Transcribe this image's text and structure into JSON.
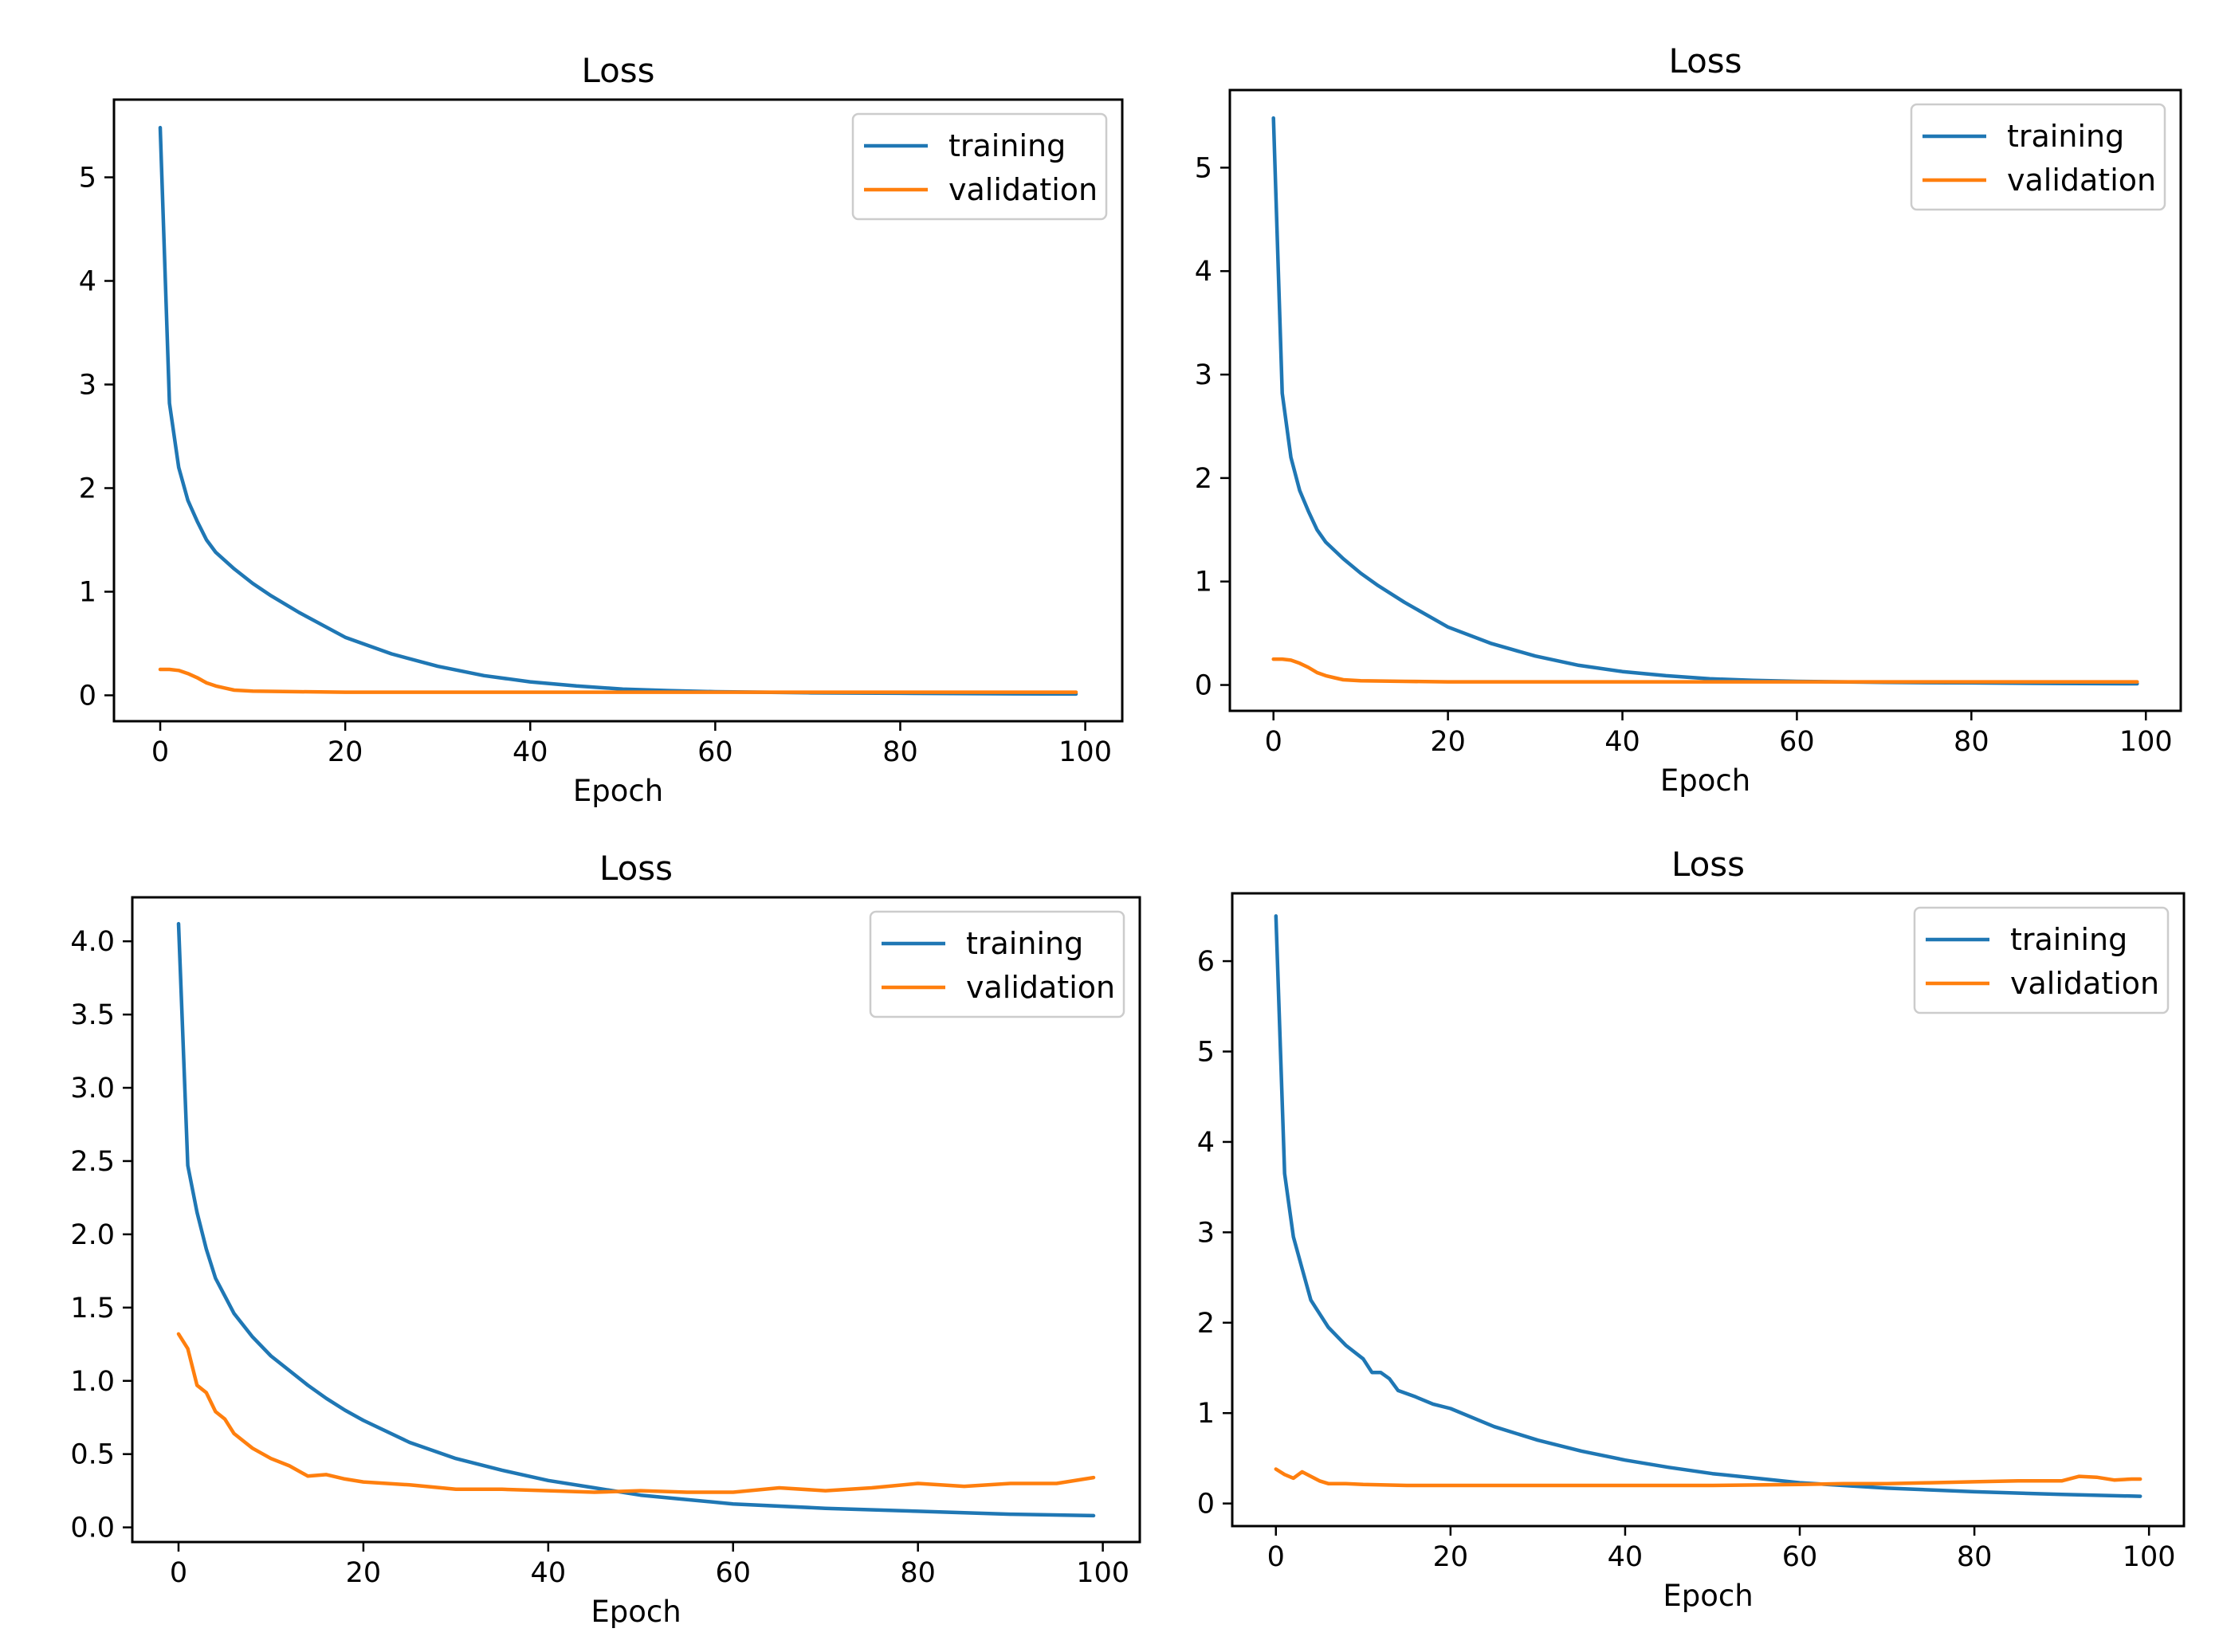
{
  "chart_data": [
    {
      "type": "line",
      "title": "Loss",
      "xlabel": "Epoch",
      "ylabel": "",
      "xlim": [
        -5,
        104
      ],
      "ylim": [
        -0.25,
        5.75
      ],
      "xticks": [
        0,
        20,
        40,
        60,
        80,
        100
      ],
      "yticks": [
        0,
        1,
        2,
        3,
        4,
        5
      ],
      "ytick_labels": [
        "0",
        "1",
        "2",
        "3",
        "4",
        "5"
      ],
      "legend_position": "top-right",
      "series": [
        {
          "name": "training",
          "color": "#1f77b4",
          "x": [
            0,
            1,
            2,
            3,
            4,
            5,
            6,
            8,
            10,
            12,
            15,
            20,
            25,
            30,
            35,
            40,
            45,
            50,
            55,
            60,
            70,
            80,
            90,
            99
          ],
          "values": [
            5.48,
            2.82,
            2.2,
            1.88,
            1.68,
            1.5,
            1.38,
            1.22,
            1.08,
            0.96,
            0.8,
            0.56,
            0.4,
            0.28,
            0.19,
            0.13,
            0.09,
            0.06,
            0.045,
            0.035,
            0.025,
            0.02,
            0.015,
            0.012
          ]
        },
        {
          "name": "validation",
          "color": "#ff7f0e",
          "x": [
            0,
            1,
            2,
            3,
            4,
            5,
            6,
            7,
            8,
            10,
            15,
            20,
            30,
            40,
            50,
            60,
            70,
            80,
            90,
            99
          ],
          "values": [
            0.25,
            0.25,
            0.24,
            0.21,
            0.17,
            0.12,
            0.09,
            0.07,
            0.05,
            0.04,
            0.035,
            0.03,
            0.03,
            0.03,
            0.03,
            0.03,
            0.03,
            0.03,
            0.03,
            0.03
          ]
        }
      ]
    },
    {
      "type": "line",
      "title": "Loss",
      "xlabel": "Epoch",
      "ylabel": "",
      "xlim": [
        -5,
        104
      ],
      "ylim": [
        -0.25,
        5.75
      ],
      "xticks": [
        0,
        20,
        40,
        60,
        80,
        100
      ],
      "yticks": [
        0,
        1,
        2,
        3,
        4,
        5
      ],
      "ytick_labels": [
        "0",
        "1",
        "2",
        "3",
        "4",
        "5"
      ],
      "legend_position": "top-right",
      "series": [
        {
          "name": "training",
          "color": "#1f77b4",
          "x": [
            0,
            1,
            2,
            3,
            4,
            5,
            6,
            8,
            10,
            12,
            15,
            20,
            25,
            30,
            35,
            40,
            45,
            50,
            55,
            60,
            70,
            80,
            90,
            99
          ],
          "values": [
            5.48,
            2.82,
            2.2,
            1.88,
            1.68,
            1.5,
            1.38,
            1.22,
            1.08,
            0.96,
            0.8,
            0.56,
            0.4,
            0.28,
            0.19,
            0.13,
            0.09,
            0.06,
            0.045,
            0.035,
            0.025,
            0.02,
            0.015,
            0.012
          ]
        },
        {
          "name": "validation",
          "color": "#ff7f0e",
          "x": [
            0,
            1,
            2,
            3,
            4,
            5,
            6,
            7,
            8,
            10,
            15,
            20,
            30,
            40,
            50,
            60,
            70,
            80,
            90,
            99
          ],
          "values": [
            0.25,
            0.25,
            0.24,
            0.21,
            0.17,
            0.12,
            0.09,
            0.07,
            0.05,
            0.04,
            0.035,
            0.03,
            0.03,
            0.03,
            0.03,
            0.03,
            0.03,
            0.03,
            0.03,
            0.03
          ]
        }
      ]
    },
    {
      "type": "line",
      "title": "Loss",
      "xlabel": "Epoch",
      "ylabel": "",
      "xlim": [
        -5,
        104
      ],
      "ylim": [
        -0.1,
        4.3
      ],
      "xticks": [
        0,
        20,
        40,
        60,
        80,
        100
      ],
      "yticks": [
        0,
        0.5,
        1,
        1.5,
        2,
        2.5,
        3,
        3.5,
        4
      ],
      "ytick_labels": [
        "0.0",
        "0.5",
        "1.0",
        "1.5",
        "2.0",
        "2.5",
        "3.0",
        "3.5",
        "4.0"
      ],
      "legend_position": "top-right",
      "series": [
        {
          "name": "training",
          "color": "#1f77b4",
          "x": [
            0,
            1,
            2,
            3,
            4,
            5,
            6,
            8,
            10,
            12,
            14,
            16,
            18,
            20,
            25,
            30,
            35,
            40,
            45,
            50,
            55,
            60,
            70,
            80,
            90,
            99
          ],
          "values": [
            4.12,
            2.47,
            2.15,
            1.9,
            1.7,
            1.58,
            1.46,
            1.3,
            1.17,
            1.07,
            0.97,
            0.88,
            0.8,
            0.73,
            0.58,
            0.47,
            0.39,
            0.32,
            0.27,
            0.22,
            0.19,
            0.16,
            0.13,
            0.11,
            0.09,
            0.08
          ]
        },
        {
          "name": "validation",
          "color": "#ff7f0e",
          "x": [
            0,
            1,
            2,
            3,
            4,
            5,
            6,
            7,
            8,
            10,
            12,
            14,
            16,
            18,
            20,
            25,
            30,
            35,
            40,
            45,
            50,
            55,
            60,
            65,
            70,
            75,
            80,
            85,
            90,
            95,
            99
          ],
          "values": [
            1.32,
            1.22,
            0.97,
            0.92,
            0.79,
            0.74,
            0.64,
            0.59,
            0.54,
            0.47,
            0.42,
            0.35,
            0.36,
            0.33,
            0.31,
            0.29,
            0.26,
            0.26,
            0.25,
            0.24,
            0.25,
            0.24,
            0.24,
            0.27,
            0.25,
            0.27,
            0.3,
            0.28,
            0.3,
            0.3,
            0.34
          ]
        }
      ]
    },
    {
      "type": "line",
      "title": "Loss",
      "xlabel": "Epoch",
      "ylabel": "",
      "xlim": [
        -5,
        104
      ],
      "ylim": [
        -0.25,
        6.75
      ],
      "xticks": [
        0,
        20,
        40,
        60,
        80,
        100
      ],
      "yticks": [
        0,
        1,
        2,
        3,
        4,
        5,
        6
      ],
      "ytick_labels": [
        "0",
        "1",
        "2",
        "3",
        "4",
        "5",
        "6"
      ],
      "legend_position": "top-right",
      "series": [
        {
          "name": "training",
          "color": "#1f77b4",
          "x": [
            0,
            1,
            2,
            3,
            4,
            6,
            8,
            10,
            11,
            12,
            13,
            14,
            16,
            18,
            20,
            25,
            30,
            35,
            40,
            45,
            50,
            55,
            60,
            70,
            80,
            90,
            99
          ],
          "values": [
            6.5,
            3.65,
            2.95,
            2.6,
            2.25,
            1.95,
            1.75,
            1.6,
            1.45,
            1.45,
            1.38,
            1.25,
            1.18,
            1.1,
            1.05,
            0.85,
            0.7,
            0.58,
            0.48,
            0.4,
            0.33,
            0.28,
            0.23,
            0.17,
            0.13,
            0.1,
            0.08
          ]
        },
        {
          "name": "validation",
          "color": "#ff7f0e",
          "x": [
            0,
            1,
            2,
            3,
            4,
            5,
            6,
            8,
            10,
            15,
            20,
            30,
            40,
            50,
            60,
            65,
            70,
            75,
            80,
            85,
            90,
            92,
            94,
            96,
            98,
            99
          ],
          "values": [
            0.38,
            0.32,
            0.28,
            0.35,
            0.3,
            0.25,
            0.22,
            0.22,
            0.21,
            0.2,
            0.2,
            0.2,
            0.2,
            0.2,
            0.21,
            0.22,
            0.22,
            0.23,
            0.24,
            0.25,
            0.25,
            0.3,
            0.29,
            0.26,
            0.27,
            0.27
          ]
        }
      ]
    }
  ]
}
